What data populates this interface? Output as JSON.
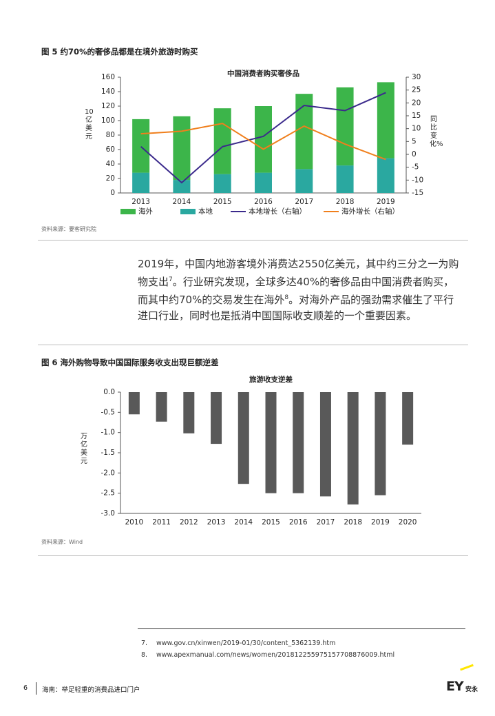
{
  "figure5": {
    "caption": "图 5  约70%的奢侈品都是在境外旅游时购买",
    "source": "资料来源：要客研究院"
  },
  "chart_data": [
    {
      "type": "bar_line",
      "title": "中国消费者购买奢侈品",
      "y_label": "10亿美元",
      "y2_label": "同比变化%",
      "categories": [
        "2013",
        "2014",
        "2015",
        "2016",
        "2017",
        "2018",
        "2019"
      ],
      "series": [
        {
          "name": "海外",
          "color": "#3cb54a",
          "values": [
            74,
            88,
            91,
            92,
            104,
            108,
            105
          ]
        },
        {
          "name": "本地",
          "color": "#2aa8a0",
          "values": [
            28,
            18,
            26,
            28,
            33,
            38,
            48
          ]
        },
        {
          "name": "本地增长（右轴）",
          "type": "line",
          "axis": "y2",
          "color": "#3b2a8c",
          "values": [
            3,
            -11,
            3,
            7,
            19,
            17,
            24
          ]
        },
        {
          "name": "海外增长（右轴）",
          "type": "line",
          "axis": "y2",
          "color": "#f07f1c",
          "values": [
            8,
            9,
            12,
            2,
            11,
            4,
            -2
          ]
        }
      ],
      "ylim": [
        0,
        160
      ],
      "yticks": [
        0,
        20,
        40,
        60,
        80,
        100,
        120,
        140,
        160
      ],
      "y2lim": [
        -15,
        30
      ],
      "y2ticks": [
        -15,
        -10,
        -5,
        0,
        5,
        10,
        15,
        20,
        25,
        30
      ]
    },
    {
      "type": "bar",
      "title": "旅游收支逆差",
      "y_label": "万亿美元",
      "categories": [
        "2010",
        "2011",
        "2012",
        "2013",
        "2014",
        "2015",
        "2016",
        "2017",
        "2018",
        "2019",
        "2020"
      ],
      "values": [
        -0.55,
        -0.73,
        -1.02,
        -1.28,
        -2.27,
        -2.5,
        -2.5,
        -2.58,
        -2.78,
        -2.55,
        -1.3
      ],
      "color": "#595959",
      "ylim": [
        -3,
        0
      ],
      "yticks": [
        {
          "value": 0,
          "label": "0.0"
        },
        -0.5,
        {
          "value": -1,
          "label": "-1.0"
        },
        -1.5,
        {
          "value": -2,
          "label": "-2.0"
        },
        -2.5,
        {
          "value": -3,
          "label": "-3.0"
        }
      ]
    }
  ],
  "paragraph": [
    "2019年，中国内地游客境外消费达2550亿美元，其中约三分之一为购物支出",
    "7",
    "。行业研究发现，全球多达40%的奢侈品由中国消费者购买，而其中约70%的交易发生在海外",
    "8",
    "。对海外产品的强劲需求催生了平行进口行业，同时也是抵消中国国际收支顺差的一个重要因素。"
  ],
  "figure6": {
    "caption": "图 6  海外购物导致中国国际服务收支出现巨额逆差",
    "source": "资料来源：Wind"
  },
  "footnotes": [
    {
      "number": "7.",
      "text": "www.gov.cn/xinwen/2019-01/30/content_5362139.htm"
    },
    {
      "number": "8.",
      "text": "www.apexmanual.com/news/women/20181225597515770887600​9.html"
    }
  ],
  "footer": {
    "page": "6",
    "title": "海南：举足轻重的消费品进口门户",
    "logo": "EY",
    "logo_sub": "安永"
  }
}
